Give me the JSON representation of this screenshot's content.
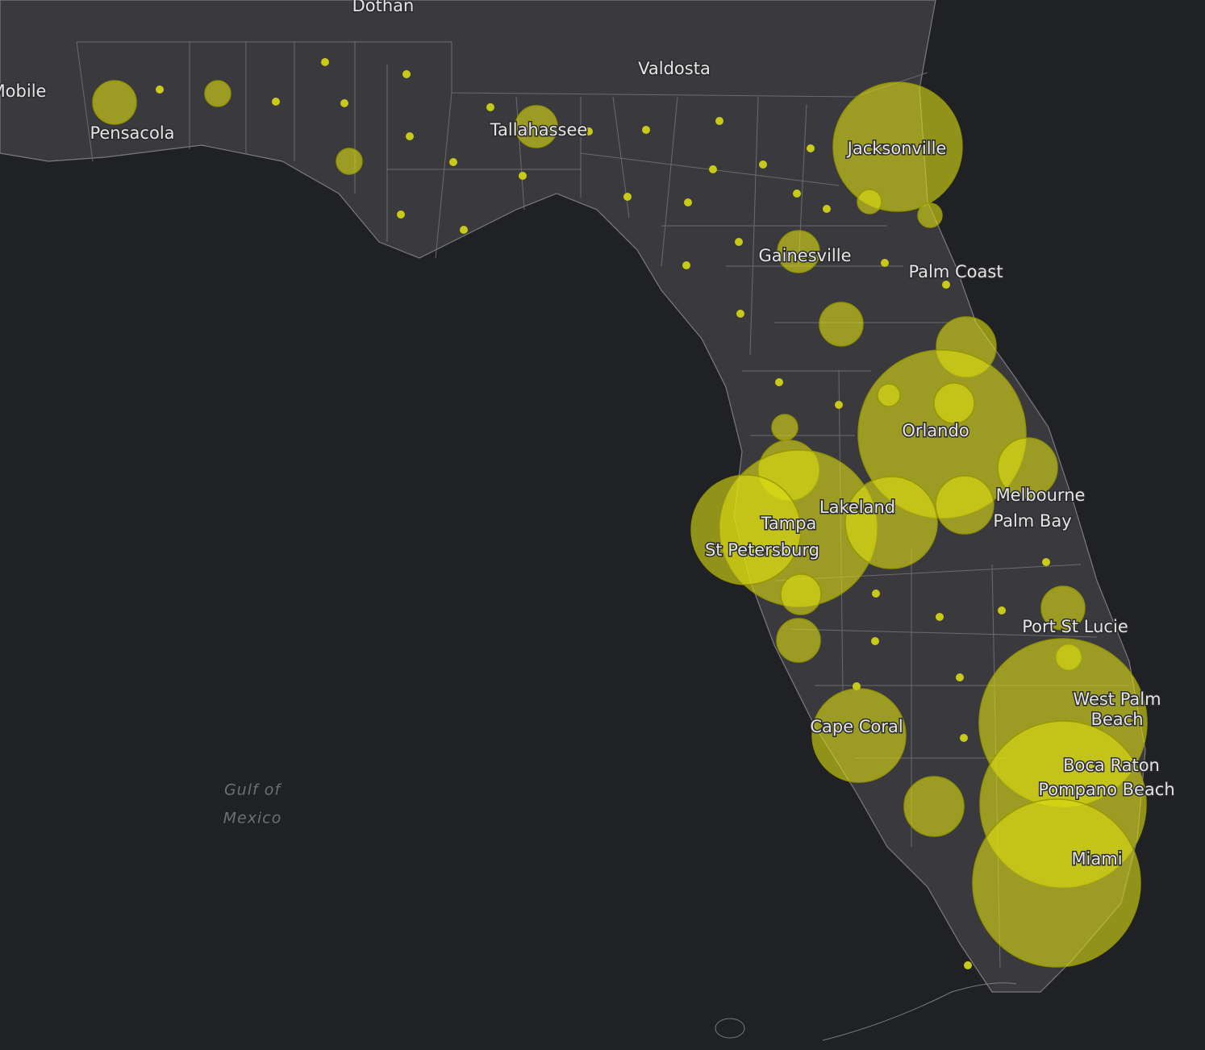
{
  "map": {
    "labels": [
      "Dothan",
      "Valdosta",
      "Mobile",
      "Pensacola",
      "Tallahassee",
      "Jacksonville",
      "Gainesville",
      "Palm Coast",
      "Orlando",
      "Melbourne",
      "Palm Bay",
      "Lakeland",
      "Tampa",
      "St Petersburg",
      "Port St Lucie",
      "West Palm",
      "Beach",
      "Boca Raton",
      "Pompano Beach",
      "Cape Coral",
      "Miami"
    ],
    "water_labels": [
      "Gulf of",
      "Mexico"
    ]
  }
}
